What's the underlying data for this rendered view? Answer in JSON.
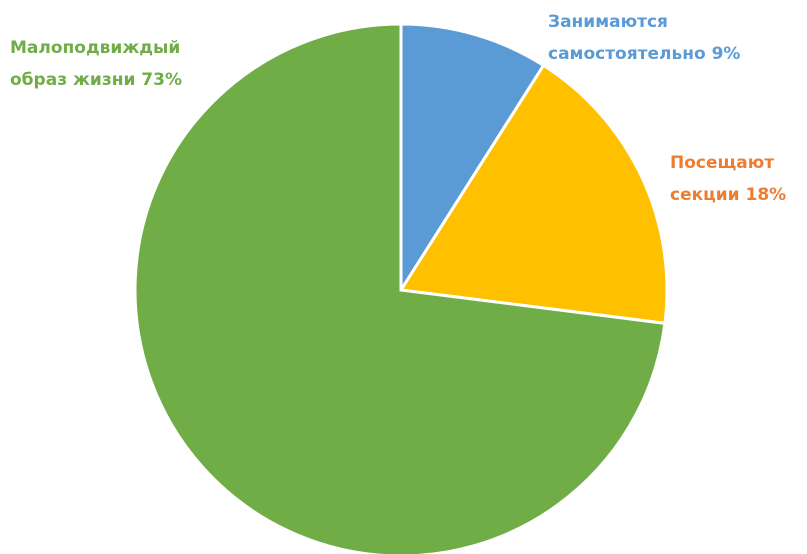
{
  "chart_data": {
    "type": "pie",
    "categories": [
      "Занимаются самостоятельно",
      "Посещают секции",
      "Малоподвиждый образ жизни"
    ],
    "values": [
      9,
      18,
      73
    ],
    "value_labels": [
      "9%",
      "18%",
      "73%"
    ],
    "colors": [
      "#5b9bd5",
      "#ffc000",
      "#70ad47"
    ],
    "label_colors": [
      "#5b9bd5",
      "#ed7d31",
      "#70ad47"
    ]
  }
}
